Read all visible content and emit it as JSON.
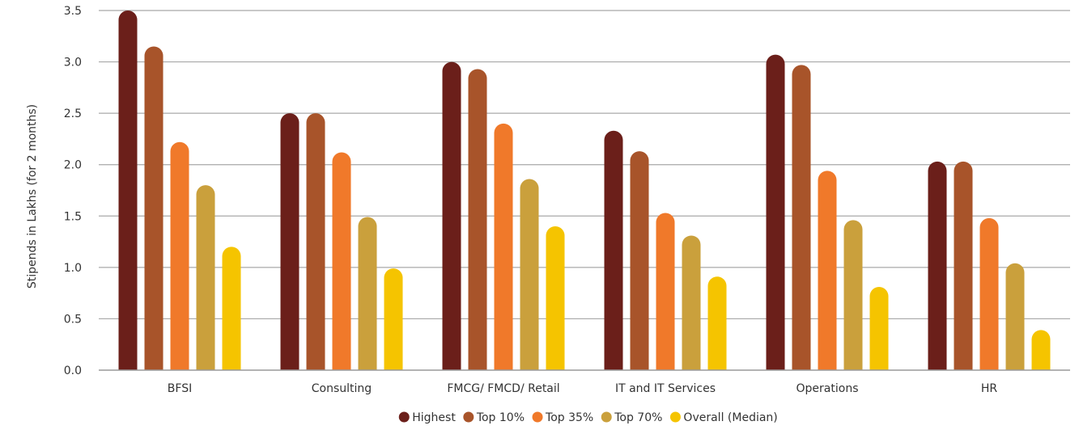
{
  "chart_data": {
    "type": "bar",
    "ylabel": "Stipends in Lakhs (for 2 months)",
    "ylim": [
      0,
      3.5
    ],
    "yticks": [
      "0.0",
      "0.5",
      "1.0",
      "1.5",
      "2.0",
      "2.5",
      "3.0",
      "3.5"
    ],
    "grid": true,
    "legend_position": "bottom",
    "categories": [
      "BFSI",
      "Consulting",
      "FMCG/ FMCD/ Retail",
      "IT and IT Services",
      "Operations",
      "HR"
    ],
    "series": [
      {
        "name": "Highest",
        "color": "#6b1f1a",
        "values": [
          3.5,
          2.5,
          3.0,
          2.33,
          3.07,
          2.03
        ]
      },
      {
        "name": "Top 10%",
        "color": "#a8542a",
        "values": [
          3.15,
          2.5,
          2.93,
          2.13,
          2.97,
          2.03
        ]
      },
      {
        "name": "Top 35%",
        "color": "#f0792a",
        "values": [
          2.22,
          2.12,
          2.4,
          1.53,
          1.94,
          1.48
        ]
      },
      {
        "name": "Top 70%",
        "color": "#caa03c",
        "values": [
          1.8,
          1.49,
          1.86,
          1.31,
          1.46,
          1.04
        ]
      },
      {
        "name": "Overall (Median)",
        "color": "#f5c400",
        "values": [
          1.2,
          0.99,
          1.4,
          0.91,
          0.81,
          0.39
        ]
      }
    ]
  }
}
